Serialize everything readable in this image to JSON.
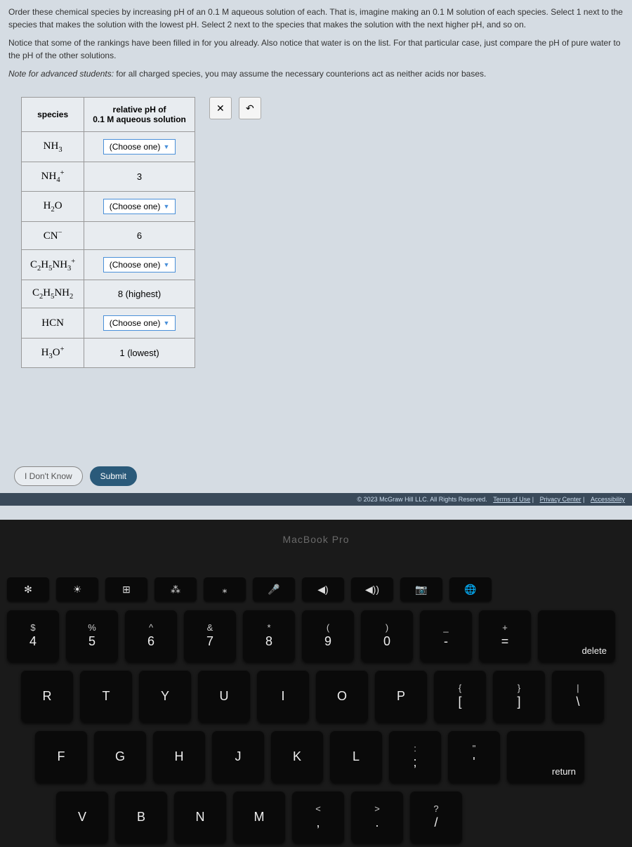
{
  "instructions": {
    "p1": "Order these chemical species by increasing pH of an 0.1 M aqueous solution of each. That is, imagine making an 0.1 M solution of each species. Select 1 next to the species that makes the solution with the lowest pH. Select 2 next to the species that makes the solution with the next higher pH, and so on.",
    "p2": "Notice that some of the rankings have been filled in for you already. Also notice that water is on the list. For that particular case, just compare the pH of pure water to the pH of the other solutions.",
    "p3_prefix": "Note for advanced students:",
    "p3_rest": " for all charged species, you may assume the necessary counterions act as neither acids nor bases."
  },
  "table": {
    "header_species": "species",
    "header_ph": "relative pH of\n0.1 M aqueous solution",
    "dropdown_placeholder": "(Choose one)",
    "rows": [
      {
        "species_html": "NH<sub>3</sub>",
        "value": null
      },
      {
        "species_html": "NH<sub>4</sub><sup>+</sup>",
        "value": "3"
      },
      {
        "species_html": "H<sub>2</sub>O",
        "value": null
      },
      {
        "species_html": "CN<sup>−</sup>",
        "value": "6"
      },
      {
        "species_html": "C<sub>2</sub>H<sub>5</sub>NH<sub>3</sub><sup>+</sup>",
        "value": null
      },
      {
        "species_html": "C<sub>2</sub>H<sub>5</sub>NH<sub>2</sub>",
        "value": "8 (highest)"
      },
      {
        "species_html": "HCN",
        "value": null
      },
      {
        "species_html": "H<sub>3</sub>O<sup>+</sup>",
        "value": "1 (lowest)"
      }
    ]
  },
  "buttons": {
    "close": "✕",
    "reset": "↶",
    "idk": "I Don't Know",
    "submit": "Submit"
  },
  "footer": {
    "copyright": "© 2023 McGraw Hill LLC. All Rights Reserved.",
    "links": [
      "Terms of Use",
      "Privacy Center",
      "Accessibility"
    ]
  },
  "macbook": "MacBook Pro",
  "keyboard": {
    "fn_icons": [
      "✻",
      "☀",
      "⊞",
      "⁂",
      "⁎",
      "🎤",
      "◀)",
      "◀))",
      "📷",
      "🌐"
    ],
    "row1": [
      {
        "upper": "$",
        "lower": "4"
      },
      {
        "upper": "%",
        "lower": "5"
      },
      {
        "upper": "^",
        "lower": "6"
      },
      {
        "upper": "&",
        "lower": "7"
      },
      {
        "upper": "*",
        "lower": "8"
      },
      {
        "upper": "(",
        "lower": "9"
      },
      {
        "upper": ")",
        "lower": "0"
      },
      {
        "upper": "_",
        "lower": "-"
      },
      {
        "upper": "+",
        "lower": "="
      },
      {
        "upper": "",
        "lower": "delete",
        "wide": true
      }
    ],
    "row2": [
      {
        "lower": "R"
      },
      {
        "lower": "T"
      },
      {
        "lower": "Y"
      },
      {
        "lower": "U"
      },
      {
        "lower": "I"
      },
      {
        "lower": "O"
      },
      {
        "lower": "P"
      },
      {
        "upper": "{",
        "lower": "["
      },
      {
        "upper": "}",
        "lower": "]"
      },
      {
        "upper": "|",
        "lower": "\\"
      }
    ],
    "row3": [
      {
        "lower": "F"
      },
      {
        "lower": "G"
      },
      {
        "lower": "H"
      },
      {
        "lower": "J"
      },
      {
        "lower": "K"
      },
      {
        "lower": "L"
      },
      {
        "upper": ":",
        "lower": ";"
      },
      {
        "upper": "\"",
        "lower": "'"
      },
      {
        "lower": "return",
        "wide": true
      }
    ],
    "row4": [
      {
        "lower": "V"
      },
      {
        "lower": "B"
      },
      {
        "lower": "N"
      },
      {
        "lower": "M"
      },
      {
        "upper": "<",
        "lower": ","
      },
      {
        "upper": ">",
        "lower": "."
      },
      {
        "upper": "?",
        "lower": "/"
      }
    ]
  }
}
